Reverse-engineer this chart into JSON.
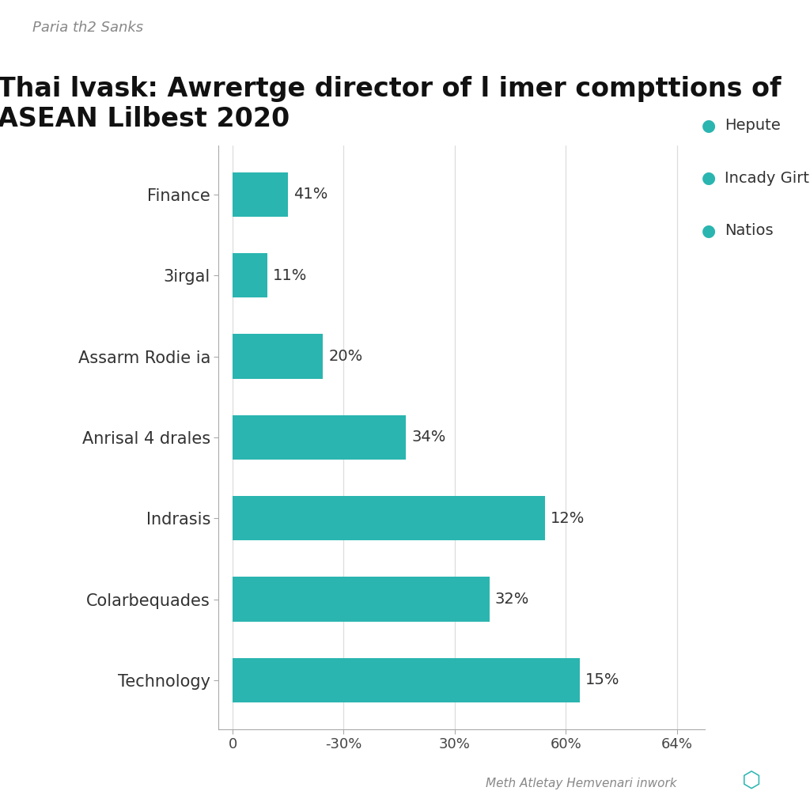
{
  "suptitle": "Paria th2 Sanks",
  "title": "Thai lvask: Awrertge director of l imer compttions of\nASEAN Lilbest 2020",
  "categories": [
    "Finance",
    "3irgal",
    "Assarm Rodie ia",
    "Anrisal 4 drales",
    "Indrasis",
    "Colarbequades",
    "Technology"
  ],
  "bar_values": [
    8,
    5,
    13,
    25,
    45,
    37,
    50
  ],
  "bar_labels": [
    "41%",
    "11%",
    "20%",
    "34%",
    "12%",
    "32%",
    "15%"
  ],
  "bar_color": "#2ab5b0",
  "background_color": "#ffffff",
  "legend_items": [
    "Hepute",
    "Incady Girties",
    "Natios"
  ],
  "legend_color": "#2ab5b0",
  "xtick_positions": [
    0,
    16,
    32,
    48,
    64
  ],
  "xtick_labels": [
    "0",
    "-30%",
    "30%",
    "60%",
    "64%"
  ],
  "xlim": [
    -2,
    68
  ],
  "footer": "Meth Atletay Hemvenari inwork",
  "title_fontsize": 24,
  "suptitle_fontsize": 13,
  "category_fontsize": 15,
  "label_fontsize": 14,
  "tick_fontsize": 13,
  "legend_fontsize": 14
}
